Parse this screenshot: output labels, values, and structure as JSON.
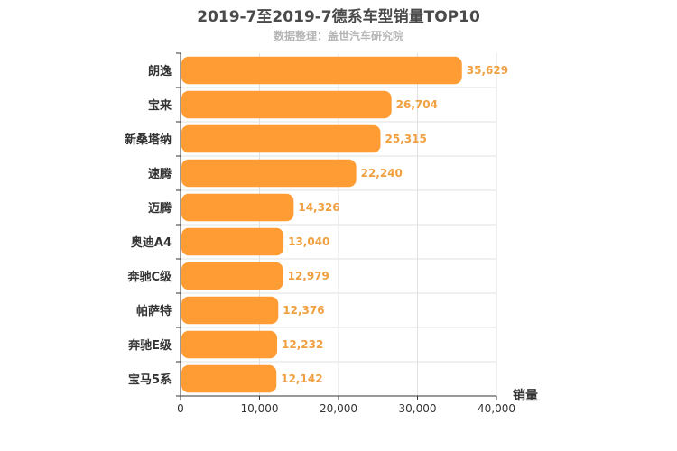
{
  "chart_data": {
    "type": "bar",
    "orientation": "horizontal",
    "title": "2019-7至2019-7德系车型销量TOP10",
    "subtitle": "数据整理：盖世汽车研究院",
    "xlabel": "销量",
    "ylabel": "",
    "categories": [
      "朗逸",
      "宝来",
      "新桑塔纳",
      "速腾",
      "迈腾",
      "奥迪A4",
      "奔驰C级",
      "帕萨特",
      "奔驰E级",
      "宝马5系"
    ],
    "values": [
      35629,
      26704,
      25315,
      22240,
      14326,
      13040,
      12979,
      12376,
      12232,
      12142
    ],
    "value_labels": [
      "35,629",
      "26,704",
      "25,315",
      "22,240",
      "14,326",
      "13,040",
      "12,979",
      "12,376",
      "12,232",
      "12,142"
    ],
    "xlim": [
      0,
      40000
    ],
    "xticks": [
      0,
      10000,
      20000,
      30000,
      40000
    ],
    "xtick_labels": [
      "0",
      "10,000",
      "20,000",
      "30,000",
      "40,000"
    ],
    "grid": true,
    "legend": "none",
    "colors": {
      "bar": "#ff9c33",
      "value_label": "#f0a040",
      "grid": "#e0e0e0",
      "axis": "#333333",
      "category_label": "#333333"
    }
  }
}
